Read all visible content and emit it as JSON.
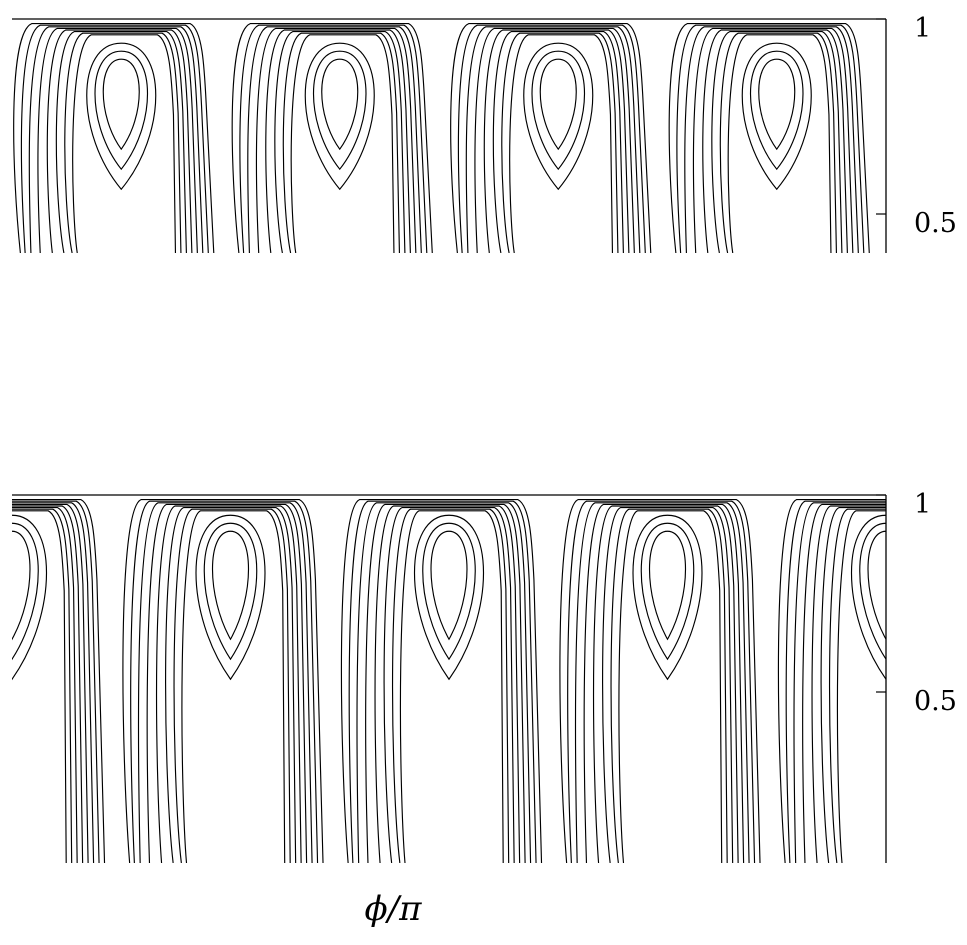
{
  "chart_data": [
    {
      "type": "contour",
      "title": "",
      "xlabel": "",
      "ylabel": "",
      "ylim": [
        0.4,
        1.0
      ],
      "yticks": [
        0.5,
        1
      ],
      "ytick_labels": [
        "0.5",
        "1"
      ],
      "ytick_side": "right",
      "grid": false,
      "legend": "none",
      "cells": 4,
      "phase": 0.0,
      "levels": 8
    },
    {
      "type": "contour",
      "title": "",
      "xlabel": "",
      "ylabel": "",
      "ylim": [
        0.0,
        1.0
      ],
      "yticks": [
        0.5,
        1
      ],
      "ytick_labels": [
        "0.5",
        "1"
      ],
      "ytick_side": "right",
      "grid": false,
      "legend": "none",
      "cells": 4,
      "phase": 0.5,
      "levels": 8
    }
  ],
  "figure": {
    "xlabel": "ϕ/π",
    "line_color": "#000000",
    "background": "#ffffff"
  }
}
